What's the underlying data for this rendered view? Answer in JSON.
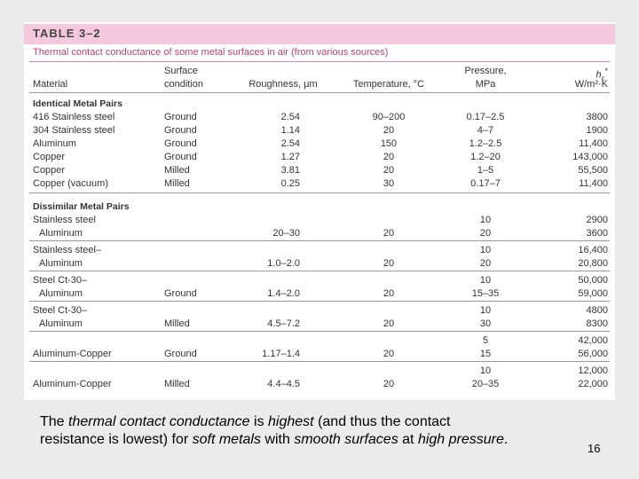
{
  "table": {
    "label": "TABLE 3–2",
    "title": "Thermal contact conductance of some metal surfaces in air (from various sources)",
    "headers": {
      "material": [
        "Material"
      ],
      "surface": [
        "Surface",
        "condition"
      ],
      "roughness": [
        "Roughness, μm"
      ],
      "temperature": [
        "Temperature, °C"
      ],
      "pressure": [
        "Pressure,",
        "MPa"
      ],
      "h": {
        "symbol": "h",
        "subscript": "c",
        "mark": "*",
        "units": "W/m²·K"
      }
    },
    "sections": [
      {
        "title": "Identical Metal Pairs",
        "groups": [
          [
            {
              "material": "416 Stainless steel",
              "surface": "Ground",
              "roughness": "2.54",
              "temperature": "90–200",
              "pressure": "0.17–2.5",
              "h": "3800"
            },
            {
              "material": "304 Stainless steel",
              "surface": "Ground",
              "roughness": "1.14",
              "temperature": "20",
              "pressure": "4–7",
              "h": "1900"
            },
            {
              "material": "Aluminum",
              "surface": "Ground",
              "roughness": "2.54",
              "temperature": "150",
              "pressure": "1.2–2.5",
              "h": "11,400"
            },
            {
              "material": "Copper",
              "surface": "Ground",
              "roughness": "1.27",
              "temperature": "20",
              "pressure": "1.2–20",
              "h": "143,000"
            },
            {
              "material": "Copper",
              "surface": "Milled",
              "roughness": "3.81",
              "temperature": "20",
              "pressure": "1–5",
              "h": "55,500"
            },
            {
              "material": "Copper (vacuum)",
              "surface": "Milled",
              "roughness": "0.25",
              "temperature": "30",
              "pressure": "0.17–7",
              "h": "11,400"
            }
          ]
        ]
      },
      {
        "title": "Dissimilar Metal Pairs",
        "groups": [
          [
            {
              "material": "Stainless steel",
              "pressure": "10",
              "h": "2900"
            },
            {
              "material": "Aluminum",
              "indent": true,
              "roughness": "20–30",
              "temperature": "20",
              "pressure": "20",
              "h": "3600"
            }
          ],
          [
            {
              "material": "Stainless steel–",
              "pressure": "10",
              "h": "16,400"
            },
            {
              "material": "Aluminum",
              "indent": true,
              "roughness": "1.0–2.0",
              "temperature": "20",
              "pressure": "20",
              "h": "20,800"
            }
          ],
          [
            {
              "material": "Steel Ct-30–",
              "pressure": "10",
              "h": "50,000"
            },
            {
              "material": "Aluminum",
              "indent": true,
              "surface": "Ground",
              "roughness": "1.4–2.0",
              "temperature": "20",
              "pressure": "15–35",
              "h": "59,000"
            }
          ],
          [
            {
              "material": "Steel Ct-30–",
              "pressure": "10",
              "h": "4800"
            },
            {
              "material": "Aluminum",
              "indent": true,
              "surface": "Milled",
              "roughness": "4.5–7.2",
              "temperature": "20",
              "pressure": "30",
              "h": "8300"
            }
          ],
          [
            {
              "pressure": "5",
              "h": "42,000"
            },
            {
              "material": "Aluminum-Copper",
              "surface": "Ground",
              "roughness": "1.17–1.4",
              "temperature": "20",
              "pressure": "15",
              "h": "56,000"
            }
          ],
          [
            {
              "pressure": "10",
              "h": "12,000"
            },
            {
              "material": "Aluminum-Copper",
              "surface": "Milled",
              "roughness": "4.4–4.5",
              "temperature": "20",
              "pressure": "20–35",
              "h": "22,000"
            }
          ]
        ]
      }
    ]
  },
  "caption": [
    [
      {
        "text": "The "
      },
      {
        "text": "thermal contact conductance",
        "italic": true
      },
      {
        "text": " is "
      },
      {
        "text": "highest",
        "italic": true
      },
      {
        "text": " (and thus the contact"
      }
    ],
    [
      {
        "text": "resistance is lowest) for "
      },
      {
        "text": "soft metals",
        "italic": true
      },
      {
        "text": " with "
      },
      {
        "text": "smooth surfaces",
        "italic": true
      },
      {
        "text": " at "
      },
      {
        "text": "high pressure",
        "italic": true
      },
      {
        "text": "."
      }
    ]
  ],
  "page_number": "16"
}
